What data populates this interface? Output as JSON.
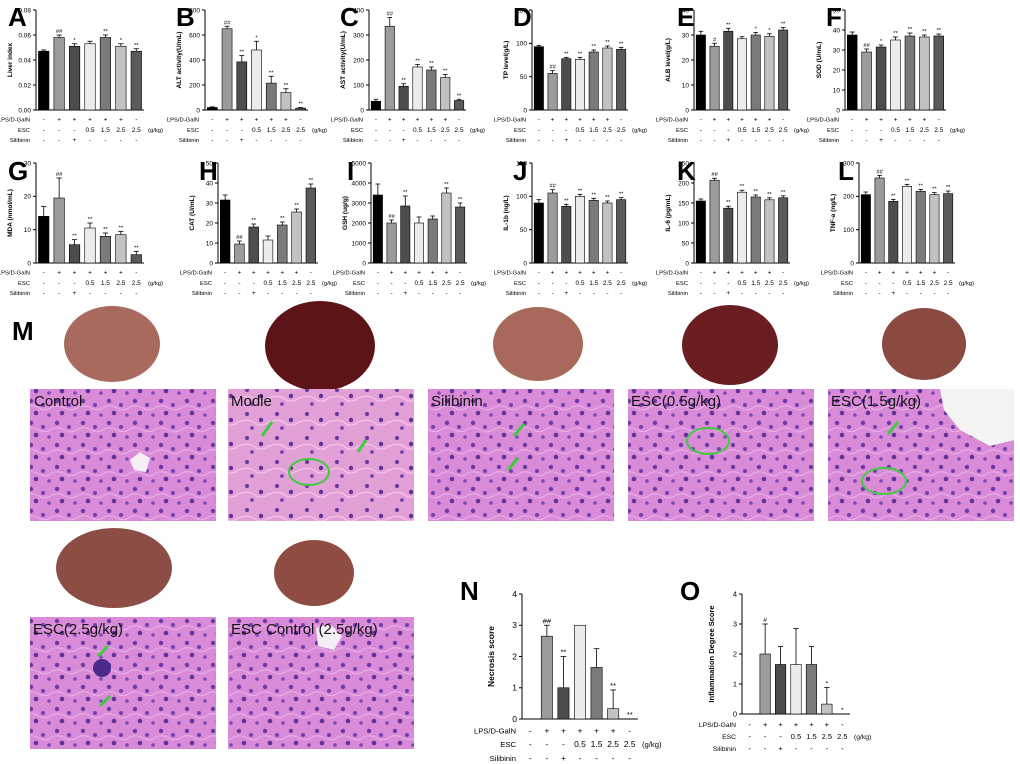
{
  "figure": {
    "panel_letters": {
      "M": "M",
      "N": "N",
      "O": "O"
    },
    "histology_labels": [
      "Control",
      "Modle",
      "Silibinin",
      "ESC(0.5g/kg)",
      "ESC(1.5g/kg)",
      "ESC(2.5g/kg)",
      "ESC Control (2.5g/kg)"
    ],
    "conditions": {
      "labels": [
        "LPS/D-GalN",
        "ESC",
        "Silibinin"
      ],
      "unit": "(g/kg)",
      "rows": [
        [
          "-",
          "+",
          "+",
          "+",
          "+",
          "+",
          "-"
        ],
        [
          "-",
          "-",
          "-",
          "0.5",
          "1.5",
          "2.5",
          "2.5"
        ],
        [
          "-",
          "-",
          "+",
          "-",
          "-",
          "-",
          "-"
        ]
      ]
    },
    "bar_colors": [
      "#000000",
      "#9b9b9b",
      "#4d4d4d",
      "#ececec",
      "#7a7a7a",
      "#c2c2c2",
      "#5a5a5a"
    ]
  },
  "chart_data": [
    {
      "type": "bar",
      "panel": "A",
      "title": "",
      "ylabel": "Liver index",
      "ylim": [
        0,
        0.08
      ],
      "yticks": [
        "0.00",
        "0.02",
        "0.04",
        "0.06",
        "0.08"
      ],
      "values": [
        0.047,
        0.058,
        0.051,
        0.053,
        0.058,
        0.051,
        0.047
      ],
      "errors": [
        0.001,
        0.002,
        0.002,
        0.002,
        0.002,
        0.002,
        0.002
      ],
      "marks": [
        "",
        "##",
        "*",
        "",
        "**",
        "*",
        "**"
      ]
    },
    {
      "type": "bar",
      "panel": "B",
      "title": "",
      "ylabel": "ALT activity(U/mL)",
      "ylim": [
        0,
        800
      ],
      "yticks": [
        "0",
        "200",
        "400",
        "600",
        "800"
      ],
      "values": [
        20,
        650,
        385,
        480,
        215,
        140,
        15
      ],
      "errors": [
        5,
        20,
        50,
        70,
        55,
        30,
        5
      ],
      "marks": [
        "",
        "##",
        "**",
        "*",
        "**",
        "**",
        "**"
      ]
    },
    {
      "type": "bar",
      "panel": "C",
      "title": "",
      "ylabel": "AST activity(U/mL)",
      "ylim": [
        0,
        400
      ],
      "yticks": [
        "0",
        "100",
        "200",
        "300",
        "400"
      ],
      "values": [
        35,
        335,
        95,
        172,
        160,
        130,
        38
      ],
      "errors": [
        8,
        35,
        10,
        10,
        12,
        12,
        5
      ],
      "marks": [
        "",
        "##",
        "**",
        "**",
        "**",
        "**",
        "**"
      ]
    },
    {
      "type": "bar",
      "panel": "D",
      "title": "",
      "ylabel": "TP level(g/L)",
      "ylim": [
        0,
        150
      ],
      "yticks": [
        "0",
        "50",
        "100",
        "150"
      ],
      "values": [
        95,
        55,
        77,
        76,
        87,
        93,
        91
      ],
      "errors": [
        2,
        4,
        2,
        3,
        3,
        3,
        3
      ],
      "marks": [
        "",
        "##",
        "**",
        "**",
        "**",
        "**",
        "**"
      ]
    },
    {
      "type": "bar",
      "panel": "E",
      "title": "",
      "ylabel": "ALB level(g/L)",
      "ylim": [
        0,
        40
      ],
      "yticks": [
        "0",
        "10",
        "20",
        "30",
        "40"
      ],
      "values": [
        30,
        25.5,
        31.5,
        28.5,
        30,
        29.5,
        32
      ],
      "errors": [
        1.5,
        1.2,
        1.2,
        0.8,
        1,
        1,
        1
      ],
      "marks": [
        "",
        "#",
        "**",
        "",
        "*",
        "*",
        "**"
      ]
    },
    {
      "type": "bar",
      "panel": "F",
      "title": "",
      "ylabel": "SOD (U/mL)",
      "ylim": [
        0,
        50
      ],
      "yticks": [
        "0",
        "10",
        "20",
        "30",
        "40",
        "50"
      ],
      "values": [
        37.5,
        29,
        31.5,
        35,
        37,
        36.5,
        37
      ],
      "errors": [
        1.5,
        1.5,
        1,
        1.5,
        1.5,
        1,
        1
      ],
      "marks": [
        "",
        "##",
        "*",
        "**",
        "**",
        "**",
        "**"
      ]
    },
    {
      "type": "bar",
      "panel": "G",
      "title": "",
      "ylabel": "MDA (nmol/mL)",
      "ylim": [
        0,
        30
      ],
      "yticks": [
        "0",
        "10",
        "20",
        "30"
      ],
      "values": [
        14,
        19.5,
        5.5,
        10.5,
        8,
        8.5,
        2.5
      ],
      "errors": [
        3,
        6,
        1.5,
        1.5,
        1,
        1,
        1
      ],
      "marks": [
        "",
        "##",
        "**",
        "**",
        "**",
        "**",
        "**"
      ]
    },
    {
      "type": "bar",
      "panel": "H",
      "title": "",
      "ylabel": "CAT (U/mL)",
      "ylim": [
        0,
        50
      ],
      "yticks": [
        "0",
        "10",
        "20",
        "30",
        "40",
        "50"
      ],
      "values": [
        31.5,
        9.5,
        18,
        11.5,
        19,
        25.5,
        37.5
      ],
      "errors": [
        2.5,
        1.5,
        1.5,
        2,
        1.5,
        1.5,
        2
      ],
      "marks": [
        "",
        "##",
        "**",
        "",
        "**",
        "**",
        "**"
      ]
    },
    {
      "type": "bar",
      "panel": "I",
      "title": "",
      "ylabel": "GSH (ug/g)",
      "ylim": [
        0,
        5000
      ],
      "yticks": [
        "0",
        "1000",
        "2000",
        "3000",
        "4000",
        "5000"
      ],
      "values": [
        3400,
        2000,
        2850,
        2000,
        2200,
        3500,
        2800
      ],
      "errors": [
        550,
        150,
        500,
        300,
        150,
        250,
        200
      ],
      "marks": [
        "",
        "##",
        "**",
        "",
        "",
        "**",
        "**"
      ]
    },
    {
      "type": "bar",
      "panel": "J",
      "title": "",
      "ylabel": "IL-1b (ng/L)",
      "ylim": [
        0,
        150
      ],
      "yticks": [
        "0",
        "50",
        "100",
        "150"
      ],
      "values": [
        90,
        105,
        85,
        100,
        94,
        90,
        95
      ],
      "errors": [
        5,
        5,
        3,
        3,
        3,
        3,
        3
      ],
      "marks": [
        "",
        "##",
        "**",
        "**",
        "**",
        "**",
        "**"
      ]
    },
    {
      "type": "bar",
      "panel": "K",
      "title": "",
      "ylabel": "IL-6 (pg/mL)",
      "ylim": [
        0,
        250
      ],
      "yticks": [
        "0",
        "50",
        "100",
        "150",
        "200",
        "250"
      ],
      "values": [
        155,
        207,
        137,
        177,
        165,
        158,
        163
      ],
      "errors": [
        5,
        5,
        5,
        5,
        5,
        5,
        5
      ],
      "marks": [
        "",
        "##",
        "**",
        "**",
        "**",
        "**",
        "**"
      ]
    },
    {
      "type": "bar",
      "panel": "L",
      "title": "",
      "ylabel": "TNF-a (ng/L)",
      "ylim": [
        0,
        300
      ],
      "yticks": [
        "0",
        "100",
        "200",
        "300"
      ],
      "values": [
        205,
        255,
        185,
        230,
        215,
        205,
        208
      ],
      "errors": [
        8,
        8,
        6,
        6,
        6,
        6,
        8
      ],
      "marks": [
        "",
        "##",
        "**",
        "**",
        "**",
        "**",
        "**"
      ]
    },
    {
      "type": "bar",
      "panel": "N",
      "title": "",
      "ylabel": "Necrosis score",
      "ylim": [
        0,
        4
      ],
      "yticks": [
        "0",
        "1",
        "2",
        "3",
        "4"
      ],
      "values": [
        0,
        2.65,
        1.0,
        3.0,
        1.65,
        0.33,
        0.0
      ],
      "errors": [
        0,
        0.35,
        1.0,
        0,
        0.6,
        0.6,
        0
      ],
      "marks": [
        "",
        "##",
        "**",
        "",
        "",
        "**",
        "**"
      ]
    },
    {
      "type": "bar",
      "panel": "O",
      "title": "",
      "ylabel": "Inflammation Degree Score",
      "ylim": [
        0,
        4
      ],
      "yticks": [
        "0",
        "1",
        "2",
        "3",
        "4"
      ],
      "values": [
        0,
        2.0,
        1.65,
        1.65,
        1.65,
        0.33,
        0.0
      ],
      "errors": [
        0,
        1.0,
        0.6,
        1.2,
        0.6,
        0.55,
        0
      ],
      "marks": [
        "",
        "#",
        "",
        "",
        "",
        "*",
        "*"
      ]
    }
  ]
}
